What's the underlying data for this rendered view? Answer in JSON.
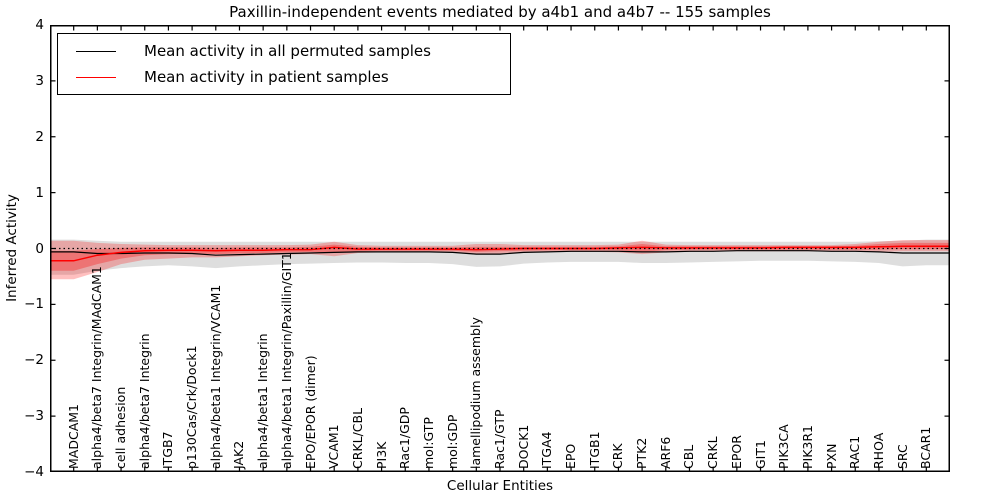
{
  "figure": {
    "title": "Paxillin-independent events mediated by a4b1 and a4b7 -- 155 samples"
  },
  "chart_data": {
    "type": "line",
    "title": "Paxillin-independent events mediated by a4b1 and a4b7 -- 155 samples",
    "xlabel": "Cellular Entities",
    "ylabel": "Inferred Activity",
    "ylim": [
      -4,
      4
    ],
    "grid": false,
    "legend_position": "upper left",
    "zero_line": {
      "style": "dotted",
      "color": "#000000",
      "y": 0
    },
    "yticks": [
      {
        "v": 4,
        "label": "4"
      },
      {
        "v": 3,
        "label": "3"
      },
      {
        "v": 2,
        "label": "2"
      },
      {
        "v": 1,
        "label": "1"
      },
      {
        "v": 0,
        "label": "0"
      },
      {
        "v": -1,
        "label": "−1"
      },
      {
        "v": -2,
        "label": "−2"
      },
      {
        "v": -3,
        "label": "−3"
      },
      {
        "v": -4,
        "label": "−4"
      }
    ],
    "categories": [
      "MADCAM1",
      "alpha4/beta7 Integrin/MAdCAM1",
      "cell adhesion",
      "alpha4/beta7 Integrin",
      "ITGB7",
      "p130Cas/Crk/Dock1",
      "alpha4/beta1 Integrin/VCAM1",
      "JAK2",
      "alpha4/beta1 Integrin",
      "alpha4/beta1 Integrin/Paxillin/GIT1",
      "EPO/EPOR (dimer)",
      "VCAM1",
      "CRKL/CBL",
      "PI3K",
      "Rac1/GDP",
      "mol:GTP",
      "mol:GDP",
      "lamellipodium assembly",
      "Rac1/GTP",
      "DOCK1",
      "ITGA4",
      "EPO",
      "ITGB1",
      "CRK",
      "PTK2",
      "ARF6",
      "CBL",
      "CRKL",
      "EPOR",
      "GIT1",
      "PIK3CA",
      "PIK3R1",
      "PXN",
      "RAC1",
      "RHOA",
      "SRC",
      "BCAR1"
    ],
    "series": [
      {
        "name": "Mean activity in all permuted samples",
        "color": "#000000",
        "width": 1.2,
        "values": [
          -0.06,
          -0.09,
          -0.09,
          -0.08,
          -0.08,
          -0.09,
          -0.12,
          -0.11,
          -0.1,
          -0.09,
          -0.08,
          -0.07,
          -0.06,
          -0.06,
          -0.06,
          -0.06,
          -0.07,
          -0.1,
          -0.1,
          -0.07,
          -0.06,
          -0.05,
          -0.05,
          -0.05,
          -0.06,
          -0.06,
          -0.05,
          -0.05,
          -0.04,
          -0.04,
          -0.04,
          -0.04,
          -0.05,
          -0.05,
          -0.06,
          -0.08,
          -0.08
        ]
      },
      {
        "name": "Mean activity in patient samples",
        "color": "#ff0000",
        "width": 1.5,
        "values": [
          -0.22,
          -0.12,
          -0.07,
          -0.04,
          -0.03,
          -0.03,
          -0.04,
          -0.03,
          -0.03,
          -0.02,
          -0.02,
          0.02,
          -0.01,
          -0.01,
          -0.01,
          -0.01,
          -0.01,
          -0.02,
          -0.01,
          0.0,
          0.0,
          0.0,
          0.0,
          0.01,
          0.02,
          0.01,
          0.01,
          0.01,
          0.01,
          0.01,
          0.02,
          0.02,
          0.02,
          0.02,
          0.03,
          0.04,
          0.04
        ]
      }
    ],
    "bands": [
      {
        "name": "permuted-samples-band",
        "color": "#000000",
        "opacity": 0.13,
        "upper": [
          0.16,
          0.14,
          0.12,
          0.12,
          0.12,
          0.12,
          0.12,
          0.12,
          0.12,
          0.12,
          0.12,
          0.12,
          0.12,
          0.12,
          0.12,
          0.12,
          0.12,
          0.12,
          0.12,
          0.12,
          0.12,
          0.12,
          0.12,
          0.12,
          0.12,
          0.12,
          0.12,
          0.12,
          0.12,
          0.12,
          0.12,
          0.12,
          0.12,
          0.12,
          0.13,
          0.14,
          0.16
        ],
        "lower": [
          -0.47,
          -0.4,
          -0.35,
          -0.32,
          -0.3,
          -0.32,
          -0.35,
          -0.32,
          -0.3,
          -0.28,
          -0.27,
          -0.26,
          -0.25,
          -0.25,
          -0.26,
          -0.26,
          -0.28,
          -0.33,
          -0.32,
          -0.27,
          -0.25,
          -0.24,
          -0.24,
          -0.24,
          -0.26,
          -0.26,
          -0.25,
          -0.24,
          -0.23,
          -0.22,
          -0.22,
          -0.22,
          -0.23,
          -0.24,
          -0.26,
          -0.32,
          -0.3
        ]
      },
      {
        "name": "patient-samples-band-outer",
        "color": "#ff0000",
        "opacity": 0.25,
        "upper": [
          0.14,
          0.1,
          0.08,
          0.07,
          0.06,
          0.06,
          0.06,
          0.06,
          0.06,
          0.06,
          0.07,
          0.12,
          0.06,
          0.05,
          0.05,
          0.05,
          0.05,
          0.08,
          0.08,
          0.06,
          0.06,
          0.06,
          0.06,
          0.07,
          0.14,
          0.07,
          0.06,
          0.06,
          0.06,
          0.06,
          0.06,
          0.06,
          0.06,
          0.08,
          0.12,
          0.15,
          0.15
        ],
        "lower": [
          -0.55,
          -0.42,
          -0.28,
          -0.2,
          -0.18,
          -0.16,
          -0.16,
          -0.14,
          -0.12,
          -0.11,
          -0.1,
          -0.14,
          -0.08,
          -0.07,
          -0.07,
          -0.07,
          -0.07,
          -0.1,
          -0.09,
          -0.07,
          -0.06,
          -0.06,
          -0.06,
          -0.07,
          -0.1,
          -0.07,
          -0.06,
          -0.05,
          -0.05,
          -0.05,
          -0.05,
          -0.05,
          -0.05,
          -0.05,
          -0.06,
          -0.05,
          -0.05
        ]
      },
      {
        "name": "patient-samples-band-inner",
        "color": "#ff0000",
        "opacity": 0.3,
        "upper": [
          -0.04,
          -0.01,
          0.01,
          0.02,
          0.02,
          0.02,
          0.01,
          0.02,
          0.02,
          0.02,
          0.03,
          0.07,
          0.03,
          0.02,
          0.02,
          0.02,
          0.02,
          0.03,
          0.03,
          0.03,
          0.03,
          0.03,
          0.03,
          0.04,
          0.08,
          0.04,
          0.04,
          0.04,
          0.04,
          0.04,
          0.04,
          0.04,
          0.04,
          0.05,
          0.08,
          0.1,
          0.1
        ],
        "lower": [
          -0.4,
          -0.28,
          -0.18,
          -0.12,
          -0.1,
          -0.09,
          -0.1,
          -0.09,
          -0.08,
          -0.07,
          -0.06,
          -0.08,
          -0.05,
          -0.04,
          -0.04,
          -0.04,
          -0.04,
          -0.06,
          -0.05,
          -0.04,
          -0.03,
          -0.03,
          -0.03,
          -0.03,
          -0.06,
          -0.03,
          -0.02,
          -0.02,
          -0.02,
          -0.02,
          -0.02,
          -0.02,
          -0.02,
          -0.02,
          -0.02,
          -0.01,
          -0.01
        ]
      }
    ]
  }
}
